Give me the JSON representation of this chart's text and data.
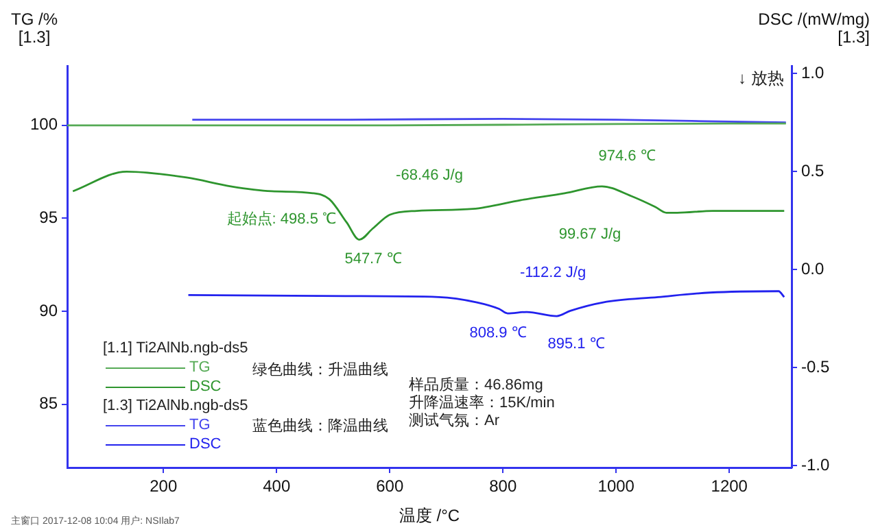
{
  "chart_data": {
    "type": "line",
    "xlabel": "温度 /°C",
    "ylabel": "TG /%\n[1.3]",
    "y2label": "DSC /(mW/mg)\n[1.3]",
    "xlim": [
      30,
      1310
    ],
    "xticks": [
      200,
      400,
      600,
      800,
      1000,
      1200
    ],
    "ylim": [
      81.6,
      103.2
    ],
    "yticks": [
      85,
      90,
      95,
      100
    ],
    "y2lim": [
      -1.01,
      1.04
    ],
    "y2ticks": [
      {
        "value": -1,
        "label": "-1.0"
      },
      {
        "value": -0.5,
        "label": "-0.5"
      },
      {
        "value": 0,
        "label": "0.0"
      },
      {
        "value": 0.5,
        "label": "0.5"
      },
      {
        "value": 1,
        "label": "1.0"
      }
    ],
    "grid": false,
    "legend": "bottom left",
    "marker": "none",
    "line_style": "solid",
    "series": [
      {
        "name": "TG",
        "color": "#55aa55",
        "x": [
          30,
          300,
          600,
          900,
          1200,
          1300
        ],
        "values": [
          100.0,
          100.0,
          100.0,
          100.05,
          100.1,
          100.1
        ]
      },
      {
        "name": "DSC",
        "color": "#2e952e",
        "axis": "y2",
        "x": [
          40,
          135,
          241,
          319,
          391,
          464,
          493,
          524,
          546,
          570,
          600,
          648,
          747,
          832,
          909,
          975,
          1026,
          1069,
          1089,
          1108,
          1171,
          1297
        ],
        "values": [
          0.4,
          0.5,
          0.47,
          0.425,
          0.4,
          0.39,
          0.36,
          0.24,
          0.153,
          0.21,
          0.28,
          0.3,
          0.31,
          0.355,
          0.39,
          0.425,
          0.376,
          0.32,
          0.29,
          0.29,
          0.3,
          0.3
        ]
      },
      {
        "name": "TG",
        "color": "#4444ee",
        "x": [
          251,
          500,
          800,
          1000,
          1200,
          1300
        ],
        "values": [
          100.3,
          100.3,
          100.35,
          100.3,
          100.2,
          100.15
        ]
      },
      {
        "name": "DSC",
        "color": "#2222ee",
        "axis": "y2",
        "x": [
          244,
          522,
          687,
          754,
          793,
          808,
          842,
          895,
          919,
          977,
          1074,
          1166,
          1287,
          1297
        ],
        "values": [
          -0.13,
          -0.135,
          -0.14,
          -0.167,
          -0.2,
          -0.223,
          -0.216,
          -0.237,
          -0.21,
          -0.167,
          -0.14,
          -0.117,
          -0.11,
          -0.14
        ]
      }
    ],
    "annotations": [
      "起始点: 498.5 ℃",
      "547.7 ℃",
      "974.6 ℃",
      "-68.46 J/g",
      "99.67 J/g",
      "-112.2 J/g",
      "808.9 ℃",
      "895.1 ℃",
      "[1.1] Ti2AlNb.ngb-ds5",
      "[1.3] Ti2AlNb.ngb-ds5",
      "绿色曲线：升温曲线",
      "蓝色曲线：降温曲线",
      "样品质量：46.86mg",
      "升降温速率：15K/min",
      "测试气氛：Ar",
      "↓ 放热",
      "主窗口   2017-12-08 10:04   用户: NSIlab7"
    ]
  }
}
